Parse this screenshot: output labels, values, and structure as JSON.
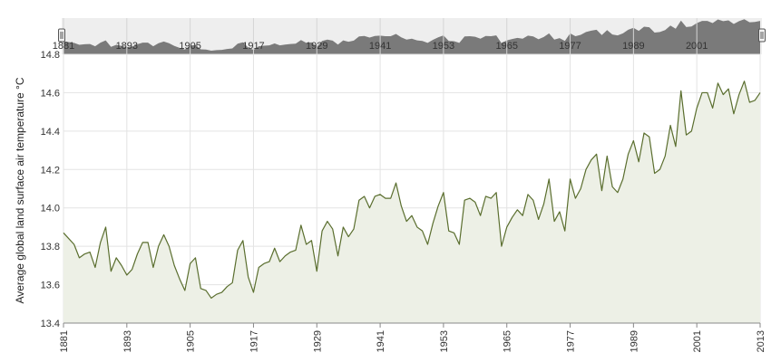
{
  "chart_data": {
    "type": "area",
    "ylabel": "Average global land surface air temperature °C",
    "xlabel": "",
    "xlim": [
      1881,
      2013
    ],
    "ylim": [
      13.4,
      14.8
    ],
    "y_ticks": [
      13.4,
      13.6,
      13.8,
      14.0,
      14.2,
      14.4,
      14.6,
      14.8
    ],
    "x_ticks": [
      1881,
      1893,
      1905,
      1917,
      1929,
      1941,
      1953,
      1965,
      1977,
      1989,
      2001,
      2013
    ],
    "navigator_ticks": [
      1881,
      1893,
      1905,
      1917,
      1929,
      1941,
      1953,
      1965,
      1977,
      1989,
      2001
    ],
    "grid": true,
    "colors": {
      "line": "#5a6e2e",
      "fill": "#edf0e6",
      "navigator": "#7a7a7a",
      "navigator_bg": "#eeeeee",
      "grid": "#e3e3e3"
    },
    "series": [
      {
        "x": [
          1881,
          1882,
          1883,
          1884,
          1885,
          1886,
          1887,
          1888,
          1889,
          1890,
          1891,
          1892,
          1893,
          1894,
          1895,
          1896,
          1897,
          1898,
          1899,
          1900,
          1901,
          1902,
          1903,
          1904,
          1905,
          1906,
          1907,
          1908,
          1909,
          1910,
          1911,
          1912,
          1913,
          1914,
          1915,
          1916,
          1917,
          1918,
          1919,
          1920,
          1921,
          1922,
          1923,
          1924,
          1925,
          1926,
          1927,
          1928,
          1929,
          1930,
          1931,
          1932,
          1933,
          1934,
          1935,
          1936,
          1937,
          1938,
          1939,
          1940,
          1941,
          1942,
          1943,
          1944,
          1945,
          1946,
          1947,
          1948,
          1949,
          1950,
          1951,
          1952,
          1953,
          1954,
          1955,
          1956,
          1957,
          1958,
          1959,
          1960,
          1961,
          1962,
          1963,
          1964,
          1965,
          1966,
          1967,
          1968,
          1969,
          1970,
          1971,
          1972,
          1973,
          1974,
          1975,
          1976,
          1977,
          1978,
          1979,
          1980,
          1981,
          1982,
          1983,
          1984,
          1985,
          1986,
          1987,
          1988,
          1989,
          1990,
          1991,
          1992,
          1993,
          1994,
          1995,
          1996,
          1997,
          1998,
          1999,
          2000,
          2001,
          2002,
          2003,
          2004,
          2005,
          2006,
          2007,
          2008,
          2009,
          2010,
          2011,
          2012,
          2013
        ],
        "values": [
          13.87,
          13.84,
          13.81,
          13.74,
          13.76,
          13.77,
          13.69,
          13.82,
          13.9,
          13.67,
          13.74,
          13.7,
          13.65,
          13.68,
          13.76,
          13.82,
          13.82,
          13.69,
          13.8,
          13.86,
          13.8,
          13.7,
          13.63,
          13.57,
          13.71,
          13.74,
          13.58,
          13.57,
          13.53,
          13.55,
          13.56,
          13.59,
          13.61,
          13.78,
          13.83,
          13.64,
          13.56,
          13.69,
          13.71,
          13.72,
          13.79,
          13.72,
          13.75,
          13.77,
          13.78,
          13.91,
          13.81,
          13.83,
          13.67,
          13.88,
          13.93,
          13.89,
          13.75,
          13.9,
          13.85,
          13.89,
          14.04,
          14.06,
          14.0,
          14.06,
          14.07,
          14.05,
          14.05,
          14.13,
          14.01,
          13.93,
          13.96,
          13.9,
          13.88,
          13.81,
          13.92,
          14.01,
          14.08,
          13.88,
          13.87,
          13.81,
          14.04,
          14.05,
          14.03,
          13.96,
          14.06,
          14.05,
          14.08,
          13.8,
          13.9,
          13.95,
          13.99,
          13.96,
          14.07,
          14.04,
          13.94,
          14.02,
          14.15,
          13.93,
          13.98,
          13.88,
          14.15,
          14.05,
          14.1,
          14.2,
          14.25,
          14.28,
          14.09,
          14.27,
          14.11,
          14.08,
          14.15,
          14.28,
          14.35,
          14.24,
          14.39,
          14.37,
          14.18,
          14.2,
          14.27,
          14.43,
          14.32,
          14.61,
          14.38,
          14.4,
          14.52,
          14.6,
          14.6,
          14.52,
          14.65,
          14.59,
          14.62,
          14.49,
          14.59,
          14.66,
          14.55,
          14.56,
          14.6
        ]
      }
    ]
  }
}
